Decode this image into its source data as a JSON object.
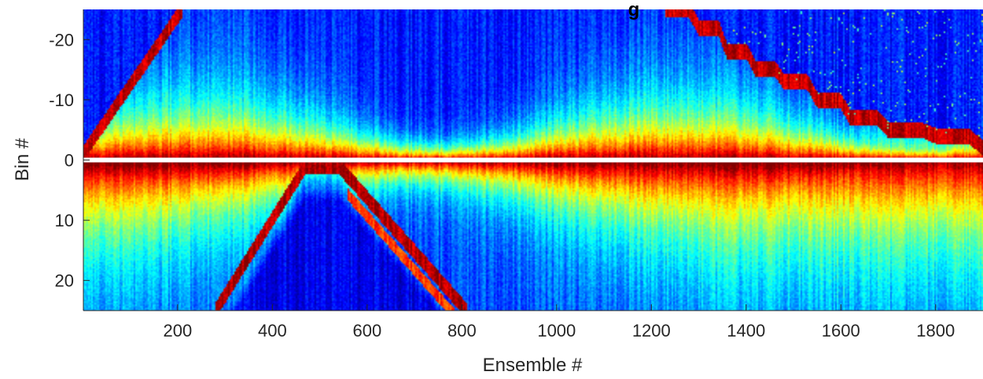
{
  "chart_data": {
    "type": "heatmap",
    "title": "g",
    "xlabel": "Ensemble #",
    "ylabel": "Bin #",
    "xlim": [
      1,
      1900
    ],
    "ylim": [
      -25,
      25
    ],
    "y_reversed": true,
    "x_ticks": [
      200,
      400,
      600,
      800,
      1000,
      1200,
      1400,
      1600,
      1800
    ],
    "y_ticks": [
      -20,
      -10,
      0,
      10,
      20
    ],
    "colormap": "jet",
    "gap_row": 0,
    "grid": false,
    "colors": {
      "jet": [
        "#00008f",
        "#0000ff",
        "#0080ff",
        "#00ffff",
        "#80ff80",
        "#ffff00",
        "#ff8000",
        "#ff0000",
        "#800000"
      ],
      "gap": "#ffffff",
      "axis": "#262626"
    }
  }
}
